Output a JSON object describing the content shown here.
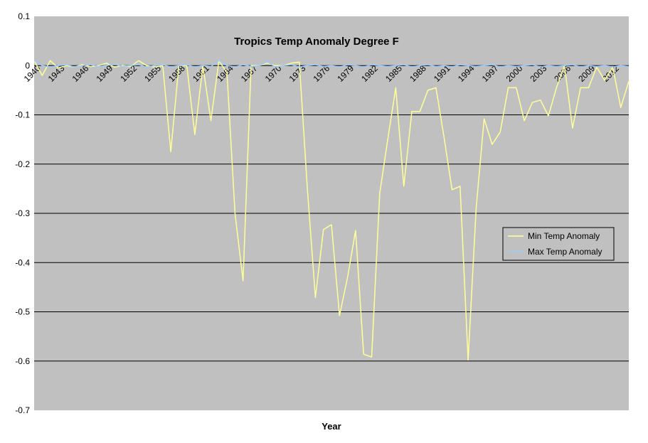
{
  "chart_data": {
    "type": "line",
    "title": "Tropics Temp Anomaly Degree F",
    "xlabel": "Year",
    "ylabel": "",
    "ylim": [
      -0.7,
      0.1
    ],
    "yticks": [
      "0.1",
      "0",
      "-0.1",
      "-0.2",
      "-0.3",
      "-0.4",
      "-0.5",
      "-0.6",
      "-0.7"
    ],
    "x": [
      1940,
      1941,
      1942,
      1943,
      1944,
      1945,
      1946,
      1947,
      1948,
      1949,
      1950,
      1951,
      1952,
      1953,
      1954,
      1955,
      1956,
      1957,
      1958,
      1959,
      1960,
      1961,
      1962,
      1963,
      1964,
      1965,
      1966,
      1967,
      1968,
      1969,
      1970,
      1971,
      1972,
      1973,
      1974,
      1975,
      1976,
      1977,
      1978,
      1979,
      1980,
      1981,
      1982,
      1983,
      1984,
      1985,
      1986,
      1987,
      1988,
      1989,
      1990,
      1991,
      1992,
      1993,
      1994,
      1995,
      1996,
      1997,
      1998,
      1999,
      2000,
      2001,
      2002,
      2003,
      2004,
      2005,
      2006,
      2007,
      2008,
      2009,
      2010,
      2011,
      2012,
      2013,
      2014
    ],
    "xtick_labels": [
      "1940",
      "1943",
      "1946",
      "1949",
      "1952",
      "1955",
      "1958",
      "1961",
      "1964",
      "1967",
      "1970",
      "1973",
      "1976",
      "1979",
      "1982",
      "1985",
      "1988",
      "1991",
      "1994",
      "1997",
      "2000",
      "2003",
      "2006",
      "2009",
      "2012"
    ],
    "series": [
      {
        "name": "Min Temp Anomaly",
        "color": "#ffff99",
        "values": [
          0.01,
          -0.02,
          0.01,
          -0.005,
          0.0,
          -0.003,
          0.002,
          -0.002,
          0.0,
          0.005,
          -0.003,
          0.0,
          -0.002,
          0.01,
          0.0,
          -0.003,
          0.0,
          -0.175,
          0.0,
          0.0,
          -0.14,
          0.0,
          -0.112,
          0.01,
          -0.015,
          -0.3,
          -0.437,
          0.0,
          0.0,
          0.005,
          0.0,
          0.0,
          0.005,
          0.007,
          -0.25,
          -0.471,
          -0.333,
          -0.323,
          -0.508,
          -0.43,
          -0.335,
          -0.586,
          -0.592,
          -0.26,
          -0.15,
          -0.045,
          -0.245,
          -0.093,
          -0.093,
          -0.05,
          -0.045,
          -0.145,
          -0.252,
          -0.245,
          -0.598,
          -0.29,
          -0.108,
          -0.16,
          -0.135,
          -0.045,
          -0.045,
          -0.112,
          -0.075,
          -0.07,
          -0.102,
          -0.045,
          0.0,
          -0.127,
          -0.045,
          -0.045,
          -0.003,
          -0.03,
          -0.003,
          -0.085,
          -0.032
        ]
      },
      {
        "name": "Max Temp Anomaly",
        "color": "#99ccff",
        "values": [
          0.01,
          0.0,
          -0.003,
          0.0,
          0.002,
          -0.003,
          0.0,
          0.002,
          -0.002,
          0.0,
          0.003,
          -0.002,
          0.0,
          0.002,
          -0.003,
          0.0,
          0.002,
          -0.003,
          0.0,
          0.002,
          -0.003,
          0.0,
          -0.002,
          0.01,
          0.0,
          -0.003,
          0.002,
          -0.002,
          0.0,
          0.008,
          -0.003,
          0.0,
          0.002,
          -0.003,
          0.0,
          0.002,
          -0.002,
          0.0,
          -0.003,
          0.002,
          0.0,
          -0.003,
          0.002,
          0.0,
          -0.002,
          0.0,
          0.002,
          -0.003,
          0.0,
          0.002,
          -0.002,
          0.0,
          -0.003,
          0.002,
          0.0,
          -0.002,
          0.0,
          0.002,
          -0.003,
          0.0,
          -0.002,
          0.0,
          0.002,
          -0.003,
          0.0,
          -0.002,
          0.0,
          0.002,
          -0.003,
          0.0,
          -0.002,
          0.0,
          -0.003,
          0.0,
          -0.002
        ]
      }
    ],
    "grid": true,
    "legend_position": "right",
    "plot_background": "#c0c0c0",
    "grid_color": "#000000"
  }
}
